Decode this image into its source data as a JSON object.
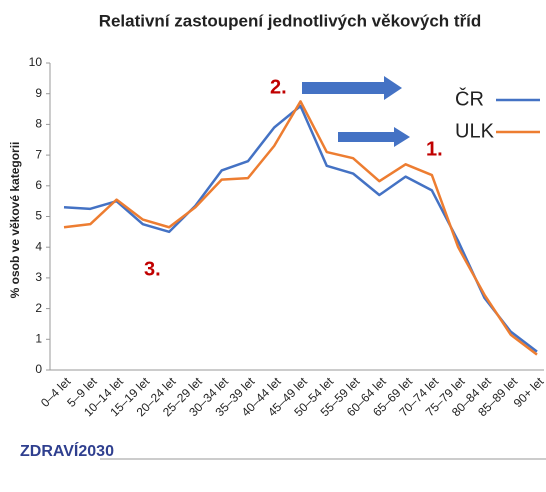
{
  "chart_data": {
    "type": "line",
    "title": "Relativní zastoupení jednotlivých věkových tříd",
    "y_label": "% osob ve věkové kategorii",
    "categories": [
      "0–4 let",
      "5–9 let",
      "10–14 let",
      "15–19 let",
      "20–24 let",
      "25–29 let",
      "30–34 let",
      "35–39 let",
      "40–44 let",
      "45–49 let",
      "50–54 let",
      "55–59 let",
      "60–64 let",
      "65–69 let",
      "70–74 let",
      "75–79 let",
      "80–84 let",
      "85–89 let",
      "90+ let"
    ],
    "series": [
      {
        "name": "ČR",
        "color": "#4472c4",
        "values": [
          5.3,
          5.25,
          5.5,
          4.75,
          4.5,
          5.35,
          6.5,
          6.8,
          7.9,
          8.6,
          6.65,
          6.4,
          5.7,
          6.3,
          5.85,
          4.2,
          2.35,
          1.25,
          0.6
        ]
      },
      {
        "name": "ULK",
        "color": "#ed7d31",
        "values": [
          4.65,
          4.75,
          5.55,
          4.9,
          4.65,
          5.3,
          6.2,
          6.25,
          7.3,
          8.75,
          7.1,
          6.9,
          6.15,
          6.7,
          6.35,
          4.0,
          2.45,
          1.15,
          0.5
        ]
      }
    ],
    "ylim": [
      0,
      10
    ],
    "yticks": [
      0,
      1,
      2,
      3,
      4,
      5,
      6,
      7,
      8,
      9,
      10
    ],
    "annotations": [
      "2.",
      "1.",
      "3."
    ],
    "logo": "ZDRAVÍ2030"
  }
}
